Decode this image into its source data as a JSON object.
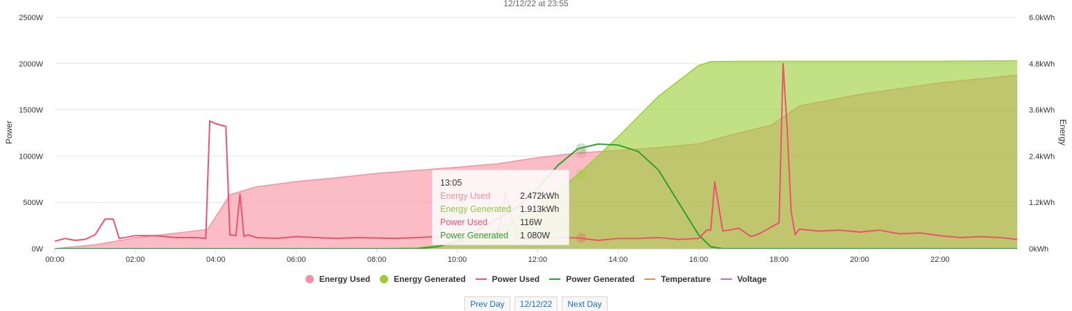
{
  "subtitle": "12/12/22 at 23:55",
  "colors": {
    "energy_used": "#f7909e",
    "energy_generated": "#9acd32",
    "power_used": "#f0506e",
    "power_generated": "#2e9e2e",
    "temperature": "#f08a3c",
    "voltage": "#cc66cc",
    "grid": "#e6e6e6"
  },
  "chart_data": {
    "type": "area",
    "x_ticks": [
      "00:00",
      "02:00",
      "04:00",
      "06:00",
      "08:00",
      "10:00",
      "12:00",
      "14:00",
      "16:00",
      "18:00",
      "20:00",
      "22:00"
    ],
    "x_range": [
      "00:00",
      "23:55"
    ],
    "y_left": {
      "label": "Power",
      "ticks": [
        "0W",
        "500W",
        "1000W",
        "1500W",
        "2000W",
        "2500W"
      ],
      "range": [
        0,
        2500
      ],
      "unit": "W"
    },
    "y_right": {
      "label": "Energy",
      "ticks": [
        "0kWh",
        "1.2kWh",
        "2.4kWh",
        "3.6kWh",
        "4.8kWh",
        "6.0kWh"
      ],
      "range": [
        0,
        6.0
      ],
      "unit": "kWh"
    },
    "grid": true,
    "legend_position": "bottom",
    "series": [
      {
        "name": "Energy Used",
        "type": "area",
        "axis": "right",
        "color": "#f7909e",
        "hours": [
          0,
          1,
          2,
          3,
          3.8,
          4.35,
          5,
          6,
          7,
          8,
          9,
          10,
          11,
          12,
          13,
          14,
          15,
          16,
          17,
          17.8,
          18.5,
          20,
          22,
          23.92
        ],
        "values": [
          0,
          0.1,
          0.28,
          0.4,
          0.5,
          1.4,
          1.6,
          1.74,
          1.84,
          1.95,
          2.03,
          2.11,
          2.2,
          2.36,
          2.48,
          2.55,
          2.62,
          2.72,
          3.0,
          3.2,
          3.7,
          4.0,
          4.3,
          4.5
        ]
      },
      {
        "name": "Energy Generated",
        "type": "area",
        "axis": "right",
        "color": "#9acd32",
        "hours": [
          0,
          8,
          9,
          10,
          11,
          12,
          13,
          14,
          15,
          16,
          16.3,
          17,
          18,
          20,
          22,
          23.92
        ],
        "values": [
          0,
          0,
          0.02,
          0.15,
          0.5,
          1.15,
          1.91,
          2.9,
          3.95,
          4.75,
          4.85,
          4.86,
          4.86,
          4.86,
          4.86,
          4.87
        ]
      },
      {
        "name": "Power Used",
        "type": "line",
        "axis": "left",
        "color": "#f0506e",
        "hours": [
          0,
          0.25,
          0.5,
          0.75,
          1,
          1.25,
          1.45,
          1.6,
          2,
          2.5,
          3,
          3.5,
          3.75,
          3.85,
          4,
          4.25,
          4.35,
          4.5,
          4.6,
          4.7,
          4.8,
          5,
          5.5,
          6,
          6.5,
          7,
          7.5,
          8,
          8.5,
          9,
          9.5,
          10,
          10.5,
          11,
          11.2,
          11.5,
          12,
          12.5,
          13,
          13.5,
          14,
          14.5,
          15,
          15.5,
          16,
          16.2,
          16.3,
          16.4,
          16.6,
          17,
          17.3,
          17.5,
          18,
          18.1,
          18.2,
          18.3,
          18.4,
          18.5,
          19,
          19.5,
          20,
          20.5,
          21,
          21.5,
          22,
          22.5,
          23,
          23.5,
          23.92
        ],
        "values": [
          80,
          110,
          90,
          100,
          150,
          320,
          320,
          110,
          140,
          140,
          120,
          120,
          110,
          1380,
          1350,
          1320,
          150,
          140,
          590,
          130,
          150,
          120,
          110,
          130,
          120,
          110,
          120,
          115,
          110,
          120,
          130,
          110,
          115,
          110,
          600,
          105,
          110,
          120,
          116,
          90,
          110,
          110,
          120,
          100,
          110,
          200,
          200,
          720,
          190,
          220,
          130,
          160,
          280,
          2000,
          1300,
          400,
          150,
          210,
          190,
          200,
          180,
          200,
          160,
          170,
          140,
          120,
          130,
          120,
          100
        ]
      },
      {
        "name": "Power Generated",
        "type": "line",
        "axis": "left",
        "color": "#2e9e2e",
        "hours": [
          0,
          9,
          9.5,
          10,
          10.5,
          11,
          11.5,
          12,
          12.5,
          13,
          13.5,
          14,
          14.5,
          15,
          15.5,
          16,
          16.3,
          16.6,
          18,
          20,
          22,
          23.92
        ],
        "values": [
          0,
          0,
          20,
          80,
          200,
          320,
          450,
          650,
          900,
          1080,
          1130,
          1120,
          1050,
          850,
          500,
          150,
          20,
          0,
          0,
          0,
          0,
          0
        ]
      },
      {
        "name": "Temperature",
        "type": "line",
        "axis": "left",
        "color": "#f08a3c",
        "hours": [],
        "values": []
      },
      {
        "name": "Voltage",
        "type": "line",
        "axis": "left",
        "color": "#cc66cc",
        "hours": [],
        "values": []
      }
    ]
  },
  "tooltip": {
    "time": "13:05",
    "rows": [
      {
        "name": "Energy Used",
        "value": "2.472kWh",
        "color": "#f7909e"
      },
      {
        "name": "Energy Generated",
        "value": "1.913kWh",
        "color": "#9acd32"
      },
      {
        "name": "Power Used",
        "value": "116W",
        "color": "#f0506e"
      },
      {
        "name": "Power Generated",
        "value": "1 080W",
        "color": "#2e9e2e"
      }
    ]
  },
  "legend": [
    {
      "label": "Energy Used",
      "marker": "dot",
      "color": "#f7909e"
    },
    {
      "label": "Energy Generated",
      "marker": "dot",
      "color": "#9acd32"
    },
    {
      "label": "Power Used",
      "marker": "line",
      "color": "#f0506e"
    },
    {
      "label": "Power Generated",
      "marker": "line",
      "color": "#2e9e2e"
    },
    {
      "label": "Temperature",
      "marker": "line",
      "color": "#f08a3c"
    },
    {
      "label": "Voltage",
      "marker": "line",
      "color": "#cc66cc"
    }
  ],
  "nav": {
    "prev": "Prev Day",
    "date": "12/12/22",
    "next": "Next Day"
  }
}
